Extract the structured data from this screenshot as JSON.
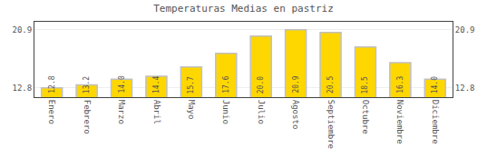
{
  "chart_data": {
    "type": "bar",
    "title": "Temperaturas Medias en pastriz",
    "categories": [
      "Enero",
      "Febrero",
      "Marzo",
      "Abril",
      "Mayo",
      "Junio",
      "Julio",
      "Agosto",
      "Septiembre",
      "Octubre",
      "Noviembre",
      "Diciembre"
    ],
    "values": [
      12.8,
      13.2,
      14.0,
      14.4,
      15.7,
      17.6,
      20.0,
      20.9,
      20.5,
      18.5,
      16.3,
      14.0
    ],
    "value_labels": [
      "12.8",
      "13.2",
      "14.0",
      "14.4",
      "15.7",
      "17.6",
      "20.0",
      "20.9",
      "20.5",
      "18.5",
      "16.3",
      "14.0"
    ],
    "data_labels": true,
    "color": "#FFD700",
    "ylim": [
      11.5,
      22.0
    ],
    "yticks": [
      12.8,
      20.9
    ],
    "y2lim": [
      11.5,
      22.0
    ],
    "y2ticks": [
      12.8,
      20.9
    ],
    "grid": true
  }
}
